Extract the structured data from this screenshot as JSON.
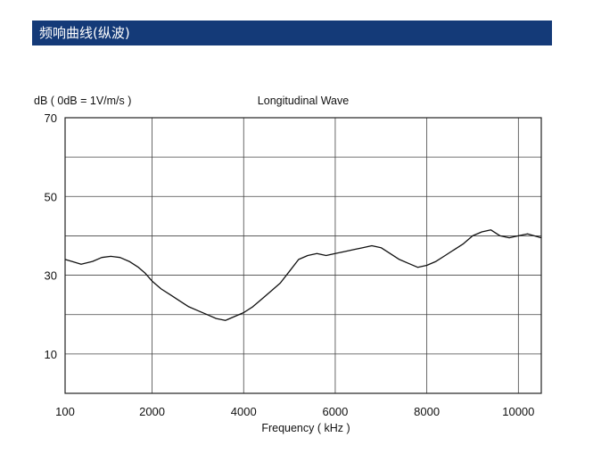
{
  "header": {
    "title": "频响曲线(纵波)"
  },
  "chart_data": {
    "type": "line",
    "title": "Longitudinal Wave",
    "ylabel": "dB ( 0dB = 1V/m/s )",
    "xlabel": "Frequency ( kHz )",
    "x_tick_labels": [
      "100",
      "2000",
      "4000",
      "6000",
      "8000",
      "10000"
    ],
    "y_tick_labels": [
      "70",
      "50",
      "30",
      "10"
    ],
    "xlim": [
      100,
      10500
    ],
    "ylim": [
      0,
      70
    ],
    "x_ticks": [
      100,
      2000,
      4000,
      6000,
      8000,
      10000
    ],
    "y_ticks": [
      70,
      50,
      30,
      10
    ],
    "grid": true,
    "line_color": "#111111",
    "series": [
      {
        "x": [
          100,
          250,
          450,
          700,
          900,
          1100,
          1300,
          1500,
          1700,
          1850,
          2000,
          2200,
          2400,
          2600,
          2800,
          3000,
          3200,
          3400,
          3600,
          3800,
          4000,
          4200,
          4400,
          4600,
          4800,
          5000,
          5200,
          5400,
          5600,
          5800,
          6000,
          6200,
          6400,
          6600,
          6800,
          7000,
          7200,
          7400,
          7600,
          7800,
          8000,
          8200,
          8400,
          8600,
          8800,
          9000,
          9200,
          9400,
          9600,
          9800,
          10000,
          10200,
          10500
        ],
        "y": [
          34,
          33.5,
          32.8,
          33.5,
          34.5,
          34.8,
          34.5,
          33.5,
          32,
          30.5,
          28.5,
          26.5,
          25,
          23.5,
          22,
          21,
          20,
          19,
          18.5,
          19.5,
          20.5,
          22,
          24,
          26,
          28,
          31,
          34,
          35,
          35.5,
          35,
          35.5,
          36,
          36.5,
          37,
          37.5,
          37,
          35.5,
          34,
          33,
          32,
          32.5,
          33.5,
          35,
          36.5,
          38,
          40,
          41,
          41.5,
          40,
          39.5,
          40,
          40.5,
          39.5
        ]
      }
    ]
  }
}
